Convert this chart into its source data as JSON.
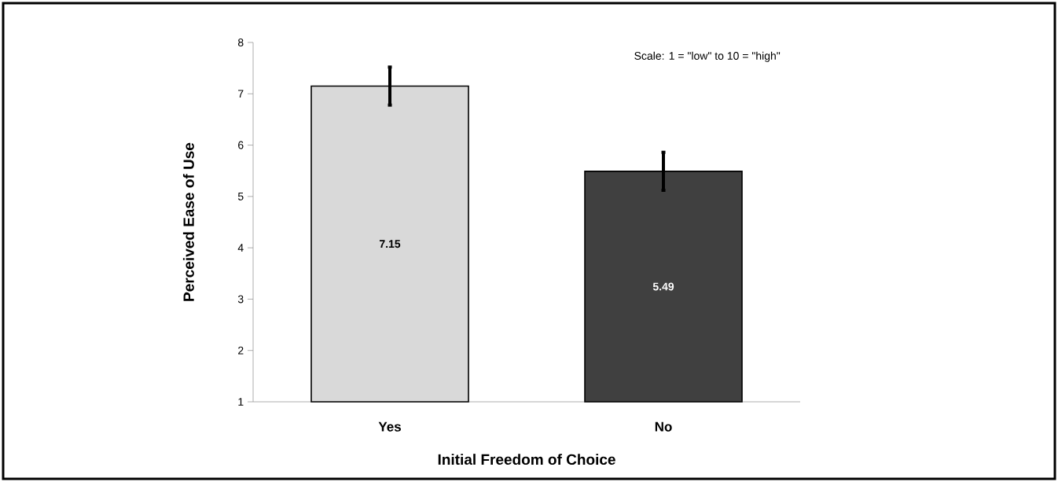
{
  "chart_data": {
    "type": "bar",
    "xlabel": "Initial Freedom of Choice",
    "ylabel": "Perceived Ease of Use",
    "annotations": [
      "Scale: 1 = \"low\" to 10 = \"high\""
    ],
    "categories": [
      "Yes",
      "No"
    ],
    "values": [
      7.15,
      5.49
    ],
    "errors": [
      0.37,
      0.37
    ],
    "colors": [
      "#d9d9d9",
      "#404040"
    ],
    "data_labels": true,
    "ylim": [
      1,
      8
    ],
    "yticks": [
      1,
      2,
      3,
      4,
      5,
      6,
      7,
      8
    ],
    "grid": false
  }
}
